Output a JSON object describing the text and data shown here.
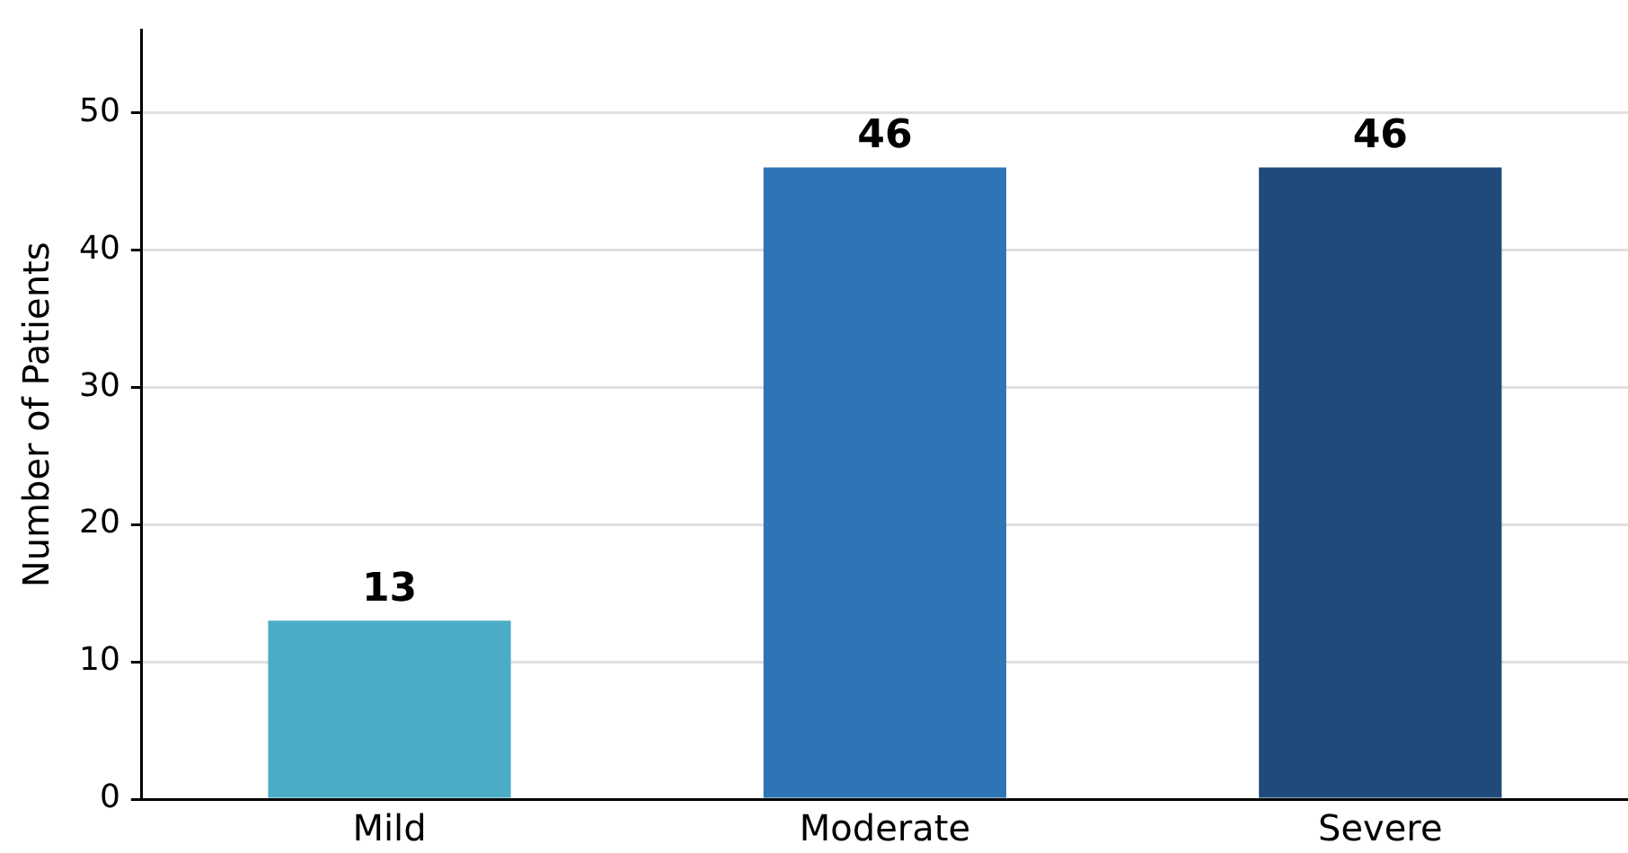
{
  "chart_data": {
    "type": "bar",
    "ylabel": "Number of Patients",
    "categories": [
      "Mild",
      "Moderate",
      "Severe"
    ],
    "values": [
      13,
      46,
      46
    ],
    "colors": [
      "#4bacc6",
      "#2e75b6",
      "#1f4a7a"
    ],
    "ylim": [
      0,
      56
    ],
    "yticks": [
      0,
      10,
      20,
      30,
      40,
      50
    ],
    "grid": "y",
    "data_labels": true
  }
}
